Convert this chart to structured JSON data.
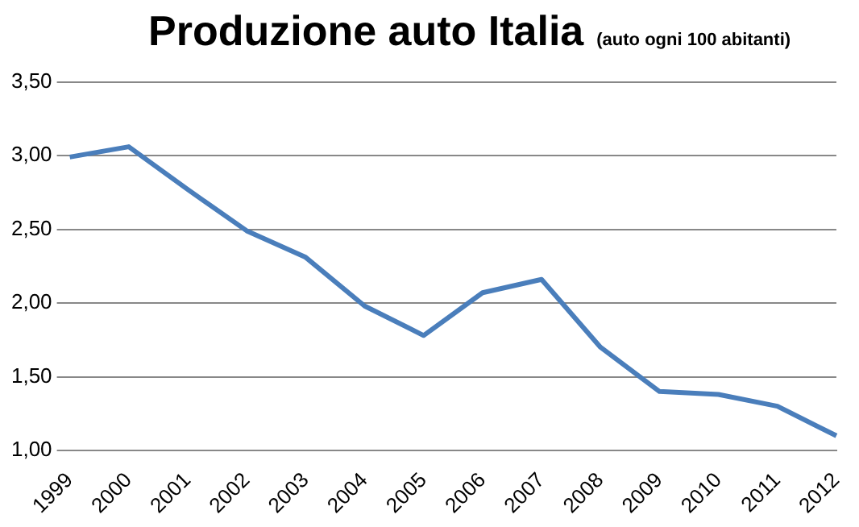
{
  "chart_data": {
    "type": "line",
    "title": "Produzione auto Italia",
    "subtitle": "(auto ogni 100 abitanti)",
    "categories": [
      "1999",
      "2000",
      "2001",
      "2002",
      "2003",
      "2004",
      "2005",
      "2006",
      "2007",
      "2008",
      "2009",
      "2010",
      "2011",
      "2012"
    ],
    "series": [
      {
        "color": "#4a7ebb",
        "values": [
          2.99,
          3.06,
          2.77,
          2.49,
          2.31,
          1.98,
          1.78,
          2.07,
          2.16,
          1.7,
          1.4,
          1.38,
          1.3,
          1.1
        ]
      }
    ],
    "ylim": [
      1,
      3.5
    ],
    "yticks": [
      {
        "value": 1,
        "label": "1,00"
      },
      {
        "value": 1.5,
        "label": "1,50"
      },
      {
        "value": 2,
        "label": "2,00"
      },
      {
        "value": 2.5,
        "label": "2,50"
      },
      {
        "value": 3,
        "label": "3,00"
      },
      {
        "value": 3.5,
        "label": "3,50"
      }
    ],
    "grid": "y",
    "legend": false,
    "marker": "none",
    "line_style": "solid"
  }
}
